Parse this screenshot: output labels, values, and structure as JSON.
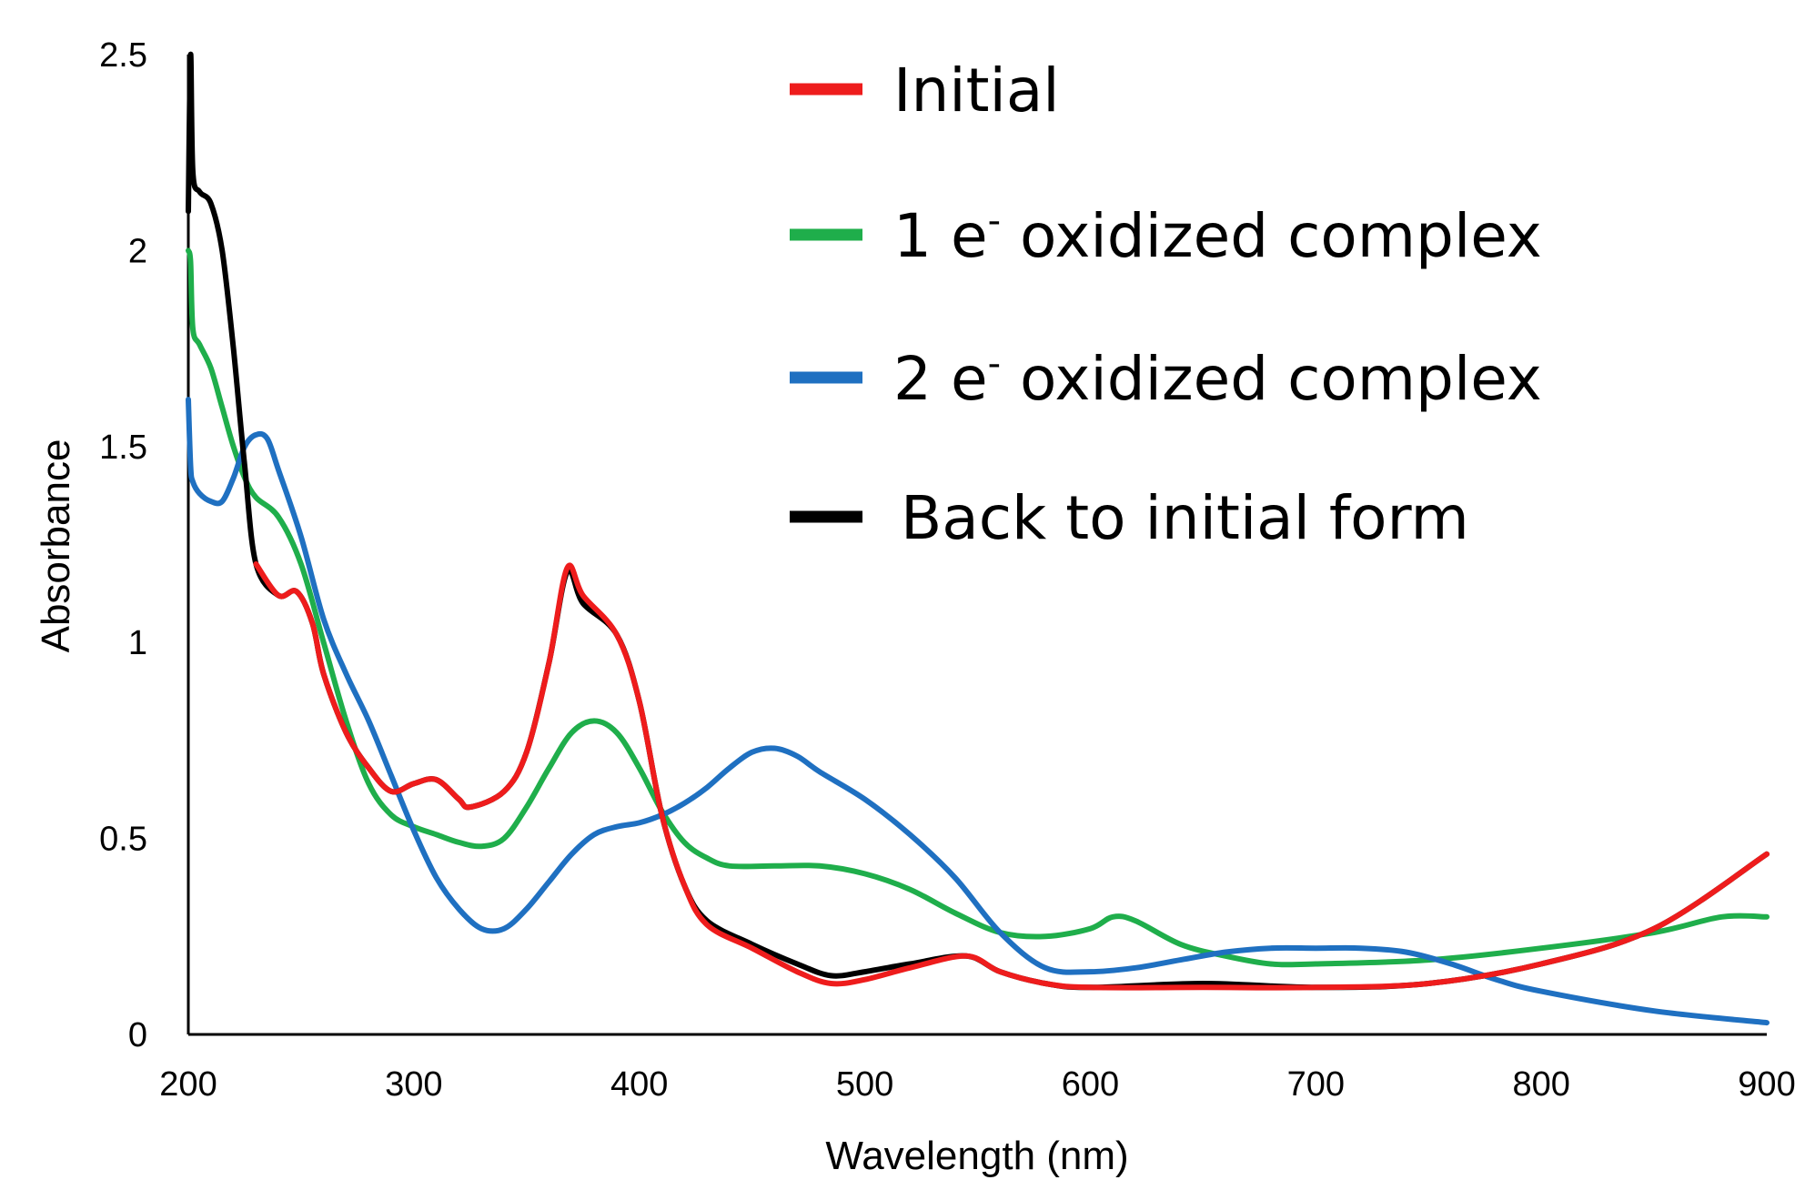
{
  "chart_data": {
    "type": "line",
    "title": "",
    "xlabel": "Wavelength (nm)",
    "ylabel": "Absorbance",
    "xlim": [
      200,
      900
    ],
    "ylim": [
      0,
      2.5
    ],
    "xticks": [
      200,
      300,
      400,
      500,
      600,
      700,
      800,
      900
    ],
    "yticks": [
      0,
      0.5,
      1,
      1.5,
      2,
      2.5
    ],
    "ytick_labels": [
      "0",
      "0.5",
      "1",
      "1.5",
      "2",
      "2.5"
    ],
    "grid": false,
    "legend_position": "top-right",
    "series": [
      {
        "name": "1 e- oxidized complex",
        "legend": {
          "lead": "1 e",
          "sup": "-",
          "rest": " oxidized complex"
        },
        "color": "#1fae4b",
        "points": [
          [
            200,
            2.0
          ],
          [
            201,
            1.97
          ],
          [
            202,
            1.8
          ],
          [
            205,
            1.76
          ],
          [
            210,
            1.7
          ],
          [
            215,
            1.6
          ],
          [
            220,
            1.5
          ],
          [
            225,
            1.42
          ],
          [
            230,
            1.37
          ],
          [
            240,
            1.32
          ],
          [
            250,
            1.2
          ],
          [
            260,
            1.0
          ],
          [
            270,
            0.8
          ],
          [
            280,
            0.64
          ],
          [
            290,
            0.56
          ],
          [
            300,
            0.53
          ],
          [
            310,
            0.51
          ],
          [
            320,
            0.49
          ],
          [
            330,
            0.48
          ],
          [
            340,
            0.5
          ],
          [
            350,
            0.58
          ],
          [
            360,
            0.68
          ],
          [
            370,
            0.77
          ],
          [
            380,
            0.8
          ],
          [
            390,
            0.77
          ],
          [
            400,
            0.68
          ],
          [
            410,
            0.57
          ],
          [
            420,
            0.49
          ],
          [
            430,
            0.45
          ],
          [
            440,
            0.43
          ],
          [
            460,
            0.43
          ],
          [
            480,
            0.43
          ],
          [
            500,
            0.41
          ],
          [
            520,
            0.37
          ],
          [
            540,
            0.31
          ],
          [
            560,
            0.26
          ],
          [
            580,
            0.25
          ],
          [
            600,
            0.27
          ],
          [
            610,
            0.3
          ],
          [
            620,
            0.29
          ],
          [
            640,
            0.23
          ],
          [
            660,
            0.2
          ],
          [
            680,
            0.18
          ],
          [
            700,
            0.18
          ],
          [
            750,
            0.19
          ],
          [
            800,
            0.22
          ],
          [
            850,
            0.26
          ],
          [
            880,
            0.3
          ],
          [
            900,
            0.3
          ]
        ]
      },
      {
        "name": "2 e- oxidized complex",
        "legend": {
          "lead": "2 e",
          "sup": "-",
          "rest": " oxidized complex"
        },
        "color": "#1f70c1",
        "points": [
          [
            200,
            1.62
          ],
          [
            201,
            1.45
          ],
          [
            202,
            1.41
          ],
          [
            205,
            1.38
          ],
          [
            210,
            1.36
          ],
          [
            215,
            1.36
          ],
          [
            220,
            1.42
          ],
          [
            225,
            1.5
          ],
          [
            230,
            1.53
          ],
          [
            235,
            1.52
          ],
          [
            240,
            1.44
          ],
          [
            250,
            1.27
          ],
          [
            260,
            1.06
          ],
          [
            270,
            0.92
          ],
          [
            280,
            0.8
          ],
          [
            290,
            0.66
          ],
          [
            300,
            0.52
          ],
          [
            310,
            0.4
          ],
          [
            320,
            0.32
          ],
          [
            330,
            0.27
          ],
          [
            340,
            0.27
          ],
          [
            350,
            0.32
          ],
          [
            360,
            0.39
          ],
          [
            370,
            0.46
          ],
          [
            380,
            0.51
          ],
          [
            390,
            0.53
          ],
          [
            400,
            0.54
          ],
          [
            410,
            0.56
          ],
          [
            420,
            0.59
          ],
          [
            430,
            0.63
          ],
          [
            440,
            0.68
          ],
          [
            450,
            0.72
          ],
          [
            460,
            0.73
          ],
          [
            470,
            0.71
          ],
          [
            480,
            0.67
          ],
          [
            500,
            0.6
          ],
          [
            520,
            0.51
          ],
          [
            540,
            0.4
          ],
          [
            560,
            0.26
          ],
          [
            580,
            0.17
          ],
          [
            600,
            0.16
          ],
          [
            620,
            0.17
          ],
          [
            640,
            0.19
          ],
          [
            660,
            0.21
          ],
          [
            680,
            0.22
          ],
          [
            700,
            0.22
          ],
          [
            720,
            0.22
          ],
          [
            740,
            0.21
          ],
          [
            760,
            0.18
          ],
          [
            780,
            0.14
          ],
          [
            800,
            0.11
          ],
          [
            850,
            0.06
          ],
          [
            900,
            0.03
          ]
        ]
      },
      {
        "name": "Back to initial form",
        "legend": {
          "lead": "Back to initial form",
          "sup": "",
          "rest": ""
        },
        "color": "#000000",
        "points": [
          [
            200,
            2.1
          ],
          [
            201,
            2.5
          ],
          [
            202,
            2.2
          ],
          [
            205,
            2.15
          ],
          [
            210,
            2.12
          ],
          [
            215,
            2.0
          ],
          [
            220,
            1.75
          ],
          [
            225,
            1.45
          ],
          [
            230,
            1.2
          ],
          [
            240,
            1.12
          ],
          [
            248,
            1.13
          ],
          [
            255,
            1.05
          ],
          [
            260,
            0.92
          ],
          [
            270,
            0.77
          ],
          [
            280,
            0.68
          ],
          [
            290,
            0.62
          ],
          [
            300,
            0.64
          ],
          [
            310,
            0.65
          ],
          [
            320,
            0.6
          ],
          [
            325,
            0.58
          ],
          [
            340,
            0.62
          ],
          [
            350,
            0.72
          ],
          [
            360,
            0.95
          ],
          [
            368,
            1.18
          ],
          [
            375,
            1.1
          ],
          [
            390,
            1.02
          ],
          [
            400,
            0.85
          ],
          [
            410,
            0.56
          ],
          [
            420,
            0.38
          ],
          [
            430,
            0.29
          ],
          [
            450,
            0.23
          ],
          [
            470,
            0.18
          ],
          [
            485,
            0.15
          ],
          [
            500,
            0.16
          ],
          [
            520,
            0.18
          ],
          [
            545,
            0.2
          ],
          [
            560,
            0.16
          ],
          [
            580,
            0.13
          ],
          [
            600,
            0.12
          ],
          [
            650,
            0.13
          ],
          [
            700,
            0.12
          ],
          [
            750,
            0.13
          ],
          [
            800,
            0.18
          ],
          [
            850,
            0.27
          ],
          [
            900,
            0.46
          ]
        ]
      },
      {
        "name": "Initial",
        "legend": {
          "lead": "Initial",
          "sup": "",
          "rest": ""
        },
        "color": "#ee1c1c",
        "points": [
          [
            230,
            1.2
          ],
          [
            240,
            1.12
          ],
          [
            248,
            1.13
          ],
          [
            255,
            1.05
          ],
          [
            260,
            0.92
          ],
          [
            270,
            0.77
          ],
          [
            280,
            0.68
          ],
          [
            290,
            0.62
          ],
          [
            300,
            0.64
          ],
          [
            310,
            0.65
          ],
          [
            320,
            0.6
          ],
          [
            325,
            0.58
          ],
          [
            340,
            0.62
          ],
          [
            350,
            0.72
          ],
          [
            360,
            0.95
          ],
          [
            368,
            1.19
          ],
          [
            375,
            1.12
          ],
          [
            390,
            1.02
          ],
          [
            400,
            0.85
          ],
          [
            410,
            0.56
          ],
          [
            420,
            0.38
          ],
          [
            430,
            0.28
          ],
          [
            450,
            0.22
          ],
          [
            470,
            0.16
          ],
          [
            485,
            0.13
          ],
          [
            500,
            0.14
          ],
          [
            520,
            0.17
          ],
          [
            545,
            0.2
          ],
          [
            560,
            0.16
          ],
          [
            580,
            0.13
          ],
          [
            600,
            0.12
          ],
          [
            650,
            0.12
          ],
          [
            700,
            0.12
          ],
          [
            750,
            0.13
          ],
          [
            800,
            0.18
          ],
          [
            850,
            0.27
          ],
          [
            900,
            0.46
          ]
        ]
      }
    ],
    "legend_order": [
      "Initial",
      "1 e- oxidized complex",
      "2 e- oxidized complex",
      "Back to initial form"
    ]
  }
}
